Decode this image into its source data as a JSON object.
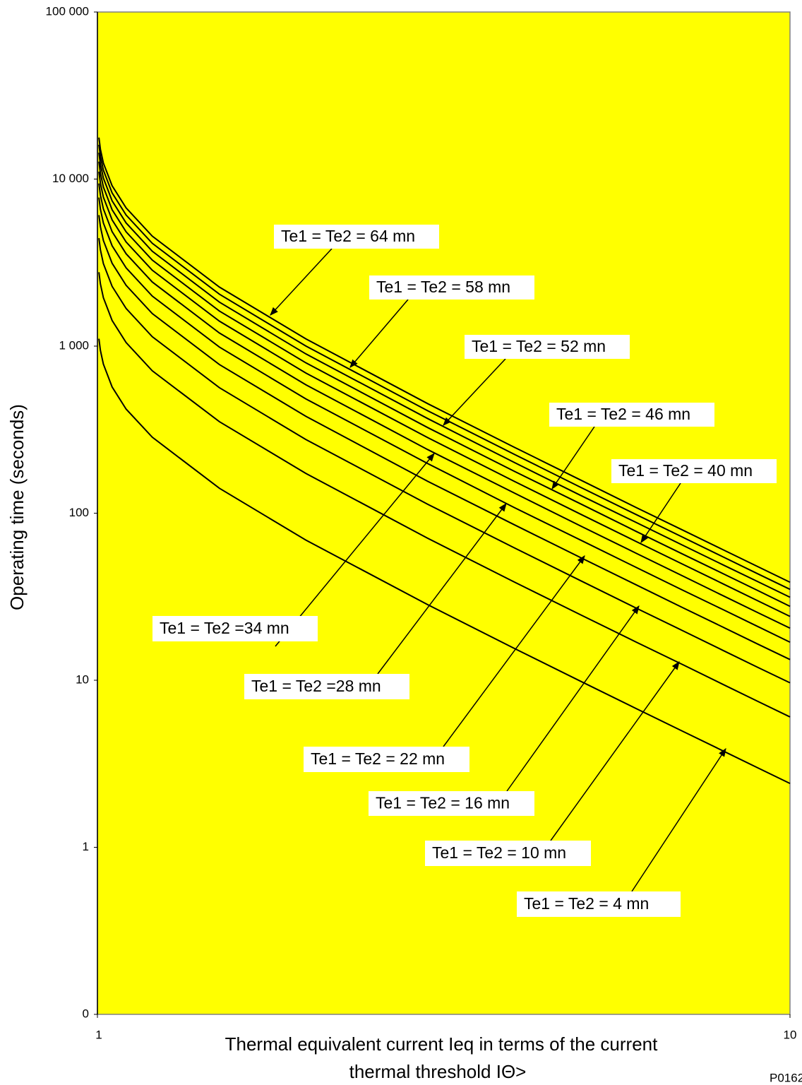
{
  "chart_data": {
    "type": "line",
    "ylabel": "Operating time (seconds)",
    "xlabel": [
      "Thermal equivalent current Ieq in terms of the current",
      "thermal threshold IΘ>"
    ],
    "footnote": "P0162",
    "xlog": true,
    "ylog": true,
    "background": "#ffff00",
    "xlim": [
      1,
      10
    ],
    "xticks": [
      1,
      10
    ],
    "ylim": [
      0.1,
      100000
    ],
    "yticks": [
      {
        "value": 0.1,
        "label": "0"
      },
      1,
      10,
      100,
      {
        "value": 1000,
        "label": "1 000"
      },
      {
        "value": 10000,
        "label": "10 000"
      },
      {
        "value": 100000,
        "label": "100 000"
      }
    ],
    "x": [
      1.005,
      1.01,
      1.02,
      1.05,
      1.1,
      1.2,
      1.5,
      2,
      3,
      4,
      5,
      6,
      7,
      8,
      9,
      10
    ],
    "series": [
      {
        "name": "Te1 = Te2 = 64 mn",
        "color": "#000000",
        "values": [
          17714,
          15080,
          12472,
          9120,
          6725,
          4554,
          2257,
          1105,
          452,
          248,
          157,
          108,
          79.2,
          60.5,
          47.7,
          38.6
        ]
      },
      {
        "name": "Te1 = Te2 = 58 mn",
        "color": "#000000",
        "values": [
          16053,
          13666,
          11303,
          8265,
          6094,
          4127,
          2046,
          1001,
          410,
          225,
          142,
          98.0,
          71.8,
          54.8,
          43.2,
          35.0
        ]
      },
      {
        "name": "Te1 = Te2 = 52 mn",
        "color": "#000000",
        "values": [
          14393,
          12252,
          10134,
          7410,
          5464,
          3700,
          1834,
          898,
          368,
          201,
          127,
          87.9,
          64.3,
          49.1,
          38.8,
          31.4
        ]
      },
      {
        "name": "Te1 = Te2 = 46 mn",
        "color": "#000000",
        "values": [
          12732,
          10839,
          8964,
          6555,
          4833,
          3274,
          1622,
          794,
          325,
          178,
          113,
          77.7,
          56.9,
          43.5,
          34.3,
          27.7
        ]
      },
      {
        "name": "Te1 = Te2 = 40 mn",
        "color": "#000000",
        "values": [
          11071,
          9425,
          7795,
          5700,
          4203,
          2847,
          1411,
          690,
          283,
          155,
          98.0,
          67.6,
          49.5,
          37.8,
          29.8,
          24.1
        ]
      },
      {
        "name": "Te1 = Te2 =34 mn",
        "color": "#000000",
        "values": [
          9411,
          8011,
          6626,
          4845,
          3573,
          2420,
          1199,
          587,
          240,
          132,
          83.3,
          57.5,
          42.1,
          32.1,
          25.3,
          20.5
        ]
      },
      {
        "name": "Te1 = Te2 =28 mn",
        "color": "#000000",
        "values": [
          7750,
          6597,
          5457,
          3990,
          2942,
          1993,
          987,
          483,
          198,
          108,
          68.6,
          47.3,
          34.6,
          26.5,
          20.9,
          16.9
        ]
      },
      {
        "name": "Te1 = Te2 = 22 mn",
        "color": "#000000",
        "values": [
          6089,
          5184,
          4287,
          3135,
          2312,
          1566,
          776,
          380,
          155,
          85.2,
          53.9,
          37.2,
          27.2,
          20.8,
          16.4,
          13.3
        ]
      },
      {
        "name": "Te1 = Te2 = 16 mn",
        "color": "#000000",
        "values": [
          4428,
          3770,
          3118,
          2280,
          1681,
          1139,
          564,
          276,
          113,
          62.0,
          39.2,
          27.0,
          19.8,
          15.1,
          11.9,
          9.65
        ]
      },
      {
        "name": "Te1 = Te2 = 10 mn",
        "color": "#000000",
        "values": [
          2768,
          2356,
          1949,
          1425,
          1051,
          712,
          353,
          173,
          70.7,
          38.7,
          24.5,
          16.9,
          12.4,
          9.45,
          7.45,
          6.03
        ]
      },
      {
        "name": "Te1 = Te2 = 4 mn",
        "color": "#000000",
        "values": [
          1107,
          942,
          780,
          570,
          420,
          285,
          141,
          69.0,
          28.3,
          15.5,
          9.8,
          6.76,
          4.95,
          3.78,
          2.98,
          2.41
        ]
      }
    ]
  }
}
